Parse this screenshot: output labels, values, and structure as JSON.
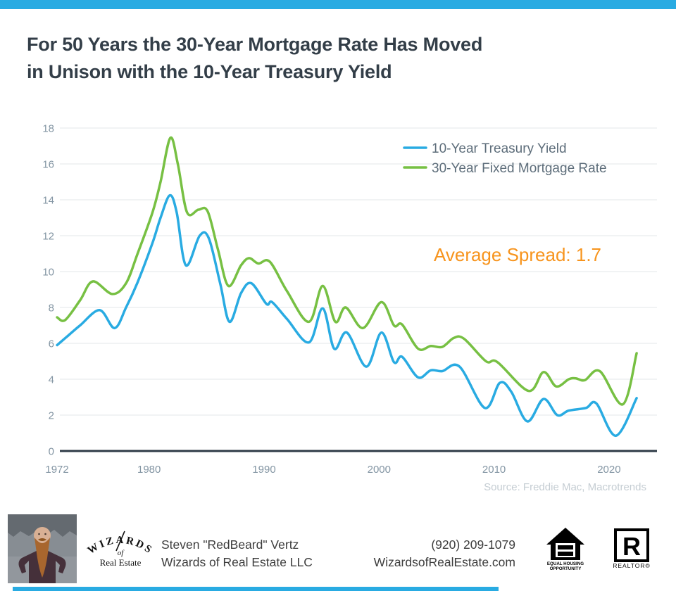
{
  "page": {
    "title_line1": "For 50 Years the 30-Year Mortgage Rate Has Moved",
    "title_line2": "in Unison with the 10-Year Treasury Yield"
  },
  "colors": {
    "accent_blue": "#29abe2",
    "treasury_line": "#29abe2",
    "mortgage_line": "#77c043",
    "title_text": "#333e48",
    "tick_text": "#8395a3",
    "legend_text": "#5d6d7a",
    "annotation_orange": "#f7941d",
    "gridline": "#e3e7ea",
    "axis_line": "#2e3a46",
    "source_text": "#c5cdd3"
  },
  "chart_data": {
    "type": "line",
    "title": "For 50 Years the 30-Year Mortgage Rate Has Moved in Unison with the 10-Year Treasury Yield",
    "xlabel": "",
    "ylabel": "",
    "xlim": [
      1971.7,
      2023.3
    ],
    "ylim": [
      0,
      18
    ],
    "grid": "horizontal",
    "legend_position": "top-right",
    "y_ticks": [
      0,
      2,
      4,
      6,
      8,
      10,
      12,
      14,
      16,
      18
    ],
    "x_ticks": [
      1972,
      1980,
      1990,
      2000,
      2010,
      2020
    ],
    "x_tick_labels": [
      "1972",
      "1980",
      "1990",
      "2000",
      "2010",
      "2020"
    ],
    "annotation": "Average Spread: 1.7",
    "source": "Source: Freddie Mac, Macrotrends",
    "series": [
      {
        "name": "10-Year Treasury Yield",
        "color": "#29abe2",
        "points": [
          [
            1972.0,
            5.9
          ],
          [
            1973.0,
            6.45
          ],
          [
            1974.0,
            7.0
          ],
          [
            1975.7,
            7.85
          ],
          [
            1977.0,
            6.85
          ],
          [
            1978.0,
            8.0
          ],
          [
            1979.0,
            9.4
          ],
          [
            1980.3,
            11.6
          ],
          [
            1981.0,
            13.0
          ],
          [
            1981.8,
            14.25
          ],
          [
            1982.4,
            13.3
          ],
          [
            1983.2,
            10.35
          ],
          [
            1984.4,
            12.0
          ],
          [
            1985.2,
            11.85
          ],
          [
            1986.2,
            9.3
          ],
          [
            1987.0,
            7.2
          ],
          [
            1988.0,
            8.8
          ],
          [
            1988.9,
            9.35
          ],
          [
            1990.2,
            8.2
          ],
          [
            1990.7,
            8.3
          ],
          [
            1992.0,
            7.35
          ],
          [
            1993.9,
            6.05
          ],
          [
            1995.1,
            7.95
          ],
          [
            1996.1,
            5.7
          ],
          [
            1997.2,
            6.6
          ],
          [
            1998.9,
            4.7
          ],
          [
            2000.2,
            6.6
          ],
          [
            2001.3,
            4.95
          ],
          [
            2002.0,
            5.25
          ],
          [
            2003.4,
            4.1
          ],
          [
            2004.5,
            4.5
          ],
          [
            2005.5,
            4.45
          ],
          [
            2007.0,
            4.7
          ],
          [
            2009.2,
            2.4
          ],
          [
            2010.5,
            3.8
          ],
          [
            2011.5,
            3.3
          ],
          [
            2012.9,
            1.65
          ],
          [
            2014.3,
            2.9
          ],
          [
            2015.5,
            2.0
          ],
          [
            2016.5,
            2.25
          ],
          [
            2018.0,
            2.4
          ],
          [
            2018.9,
            2.65
          ],
          [
            2020.6,
            0.85
          ],
          [
            2022.4,
            2.95
          ]
        ]
      },
      {
        "name": "30-Year Fixed Mortgage Rate",
        "color": "#77c043",
        "points": [
          [
            1972.0,
            7.45
          ],
          [
            1972.7,
            7.3
          ],
          [
            1974.0,
            8.4
          ],
          [
            1975.1,
            9.45
          ],
          [
            1976.8,
            8.75
          ],
          [
            1978.0,
            9.35
          ],
          [
            1979.0,
            11.0
          ],
          [
            1980.3,
            13.3
          ],
          [
            1981.0,
            15.0
          ],
          [
            1981.85,
            17.45
          ],
          [
            1982.5,
            16.0
          ],
          [
            1983.3,
            13.3
          ],
          [
            1984.3,
            13.45
          ],
          [
            1985.1,
            13.35
          ],
          [
            1986.0,
            11.2
          ],
          [
            1986.9,
            9.2
          ],
          [
            1988.0,
            10.35
          ],
          [
            1988.7,
            10.75
          ],
          [
            1989.5,
            10.45
          ],
          [
            1990.5,
            10.55
          ],
          [
            1992.0,
            8.9
          ],
          [
            1993.9,
            7.2
          ],
          [
            1995.1,
            9.2
          ],
          [
            1996.2,
            7.2
          ],
          [
            1997.1,
            8.0
          ],
          [
            1998.6,
            6.85
          ],
          [
            2000.2,
            8.3
          ],
          [
            2001.3,
            7.0
          ],
          [
            2002.0,
            7.05
          ],
          [
            2003.4,
            5.7
          ],
          [
            2004.5,
            5.85
          ],
          [
            2005.5,
            5.8
          ],
          [
            2006.5,
            6.3
          ],
          [
            2007.4,
            6.25
          ],
          [
            2009.3,
            5.0
          ],
          [
            2010.3,
            4.95
          ],
          [
            2013.0,
            3.35
          ],
          [
            2014.3,
            4.4
          ],
          [
            2015.4,
            3.6
          ],
          [
            2016.5,
            4.0
          ],
          [
            2017.1,
            4.05
          ],
          [
            2017.9,
            3.95
          ],
          [
            2019.2,
            4.45
          ],
          [
            2021.2,
            2.6
          ],
          [
            2022.4,
            5.45
          ]
        ]
      }
    ]
  },
  "footer": {
    "logo_arc_text": "WIZARDS",
    "logo_of": "of",
    "logo_sub": "Real Estate",
    "agent_name": "Steven \"RedBeard\" Vertz",
    "company_name": "Wizards of Real Estate LLC",
    "phone": "(920) 209-1079",
    "website": "WizardsofRealEstate.com",
    "eho_line1": "EQUAL HOUSING",
    "eho_line2": "OPPORTUNITY",
    "realtor_r": "R",
    "realtor_text": "REALTOR®"
  }
}
